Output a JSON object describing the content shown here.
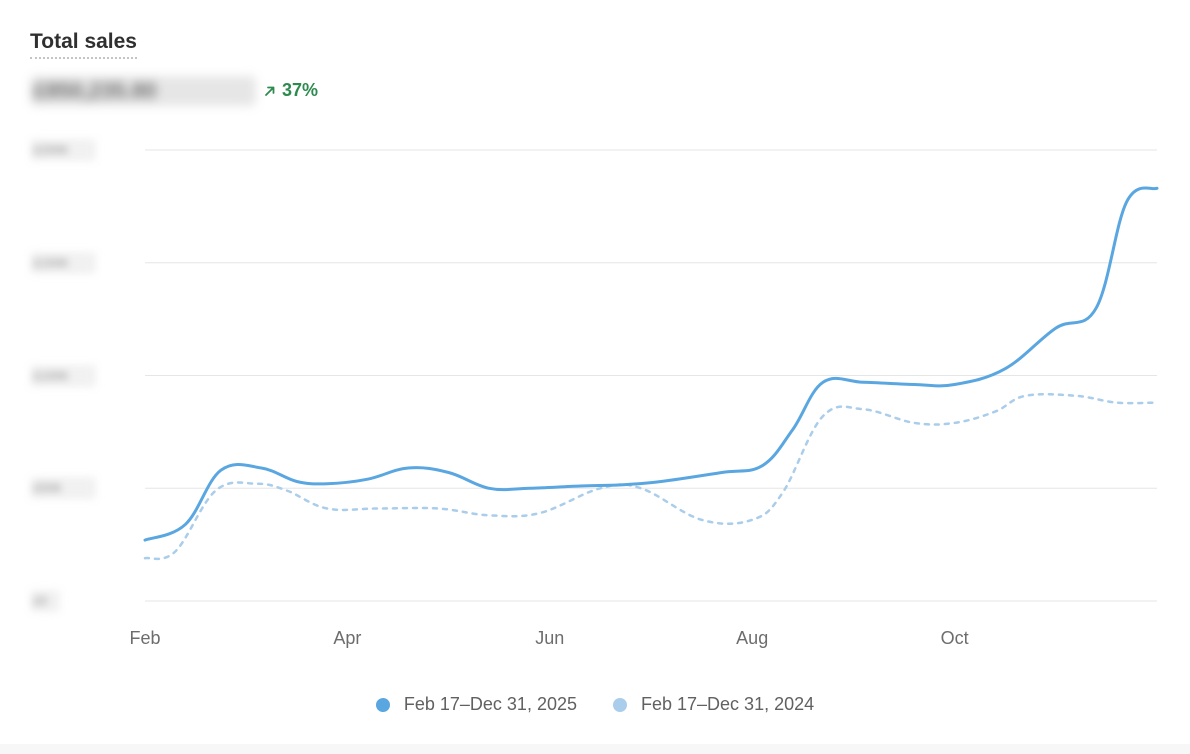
{
  "card": {
    "title": "Total sales",
    "total_value": "£850,235.80",
    "change_percent": "37%",
    "change_direction": "up",
    "change_icon": "arrow-up-right-icon"
  },
  "colors": {
    "current_series": "#5aa6e0",
    "previous_series": "#a9cdea",
    "gridline": "#e6e6e6",
    "positive_change": "#2e8b4f"
  },
  "chart_data": {
    "type": "line",
    "title": "Total sales",
    "xlabel": "",
    "ylabel": "",
    "x_ticks": [
      {
        "label": "Feb",
        "month": 0
      },
      {
        "label": "Apr",
        "month": 2
      },
      {
        "label": "Jun",
        "month": 4
      },
      {
        "label": "Aug",
        "month": 6
      },
      {
        "label": "Oct",
        "month": 8
      }
    ],
    "x_range": [
      0,
      10
    ],
    "y_ticks": [
      "£200K",
      "£150K",
      "£100K",
      "£50K",
      "£0"
    ],
    "y_tick_values": [
      200,
      150,
      100,
      50,
      0
    ],
    "ylim": [
      0,
      200
    ],
    "grid": true,
    "legend_position": "bottom",
    "series": [
      {
        "name": "Feb 17–Dec 31, 2025",
        "style": "solid",
        "points": [
          [
            0.0,
            27
          ],
          [
            0.4,
            34
          ],
          [
            0.75,
            58
          ],
          [
            1.15,
            59
          ],
          [
            1.5,
            53
          ],
          [
            1.8,
            52
          ],
          [
            2.2,
            54
          ],
          [
            2.6,
            59
          ],
          [
            3.0,
            57
          ],
          [
            3.4,
            50
          ],
          [
            3.8,
            50
          ],
          [
            4.3,
            51
          ],
          [
            4.7,
            51.5
          ],
          [
            5.1,
            53
          ],
          [
            5.7,
            57
          ],
          [
            6.1,
            60
          ],
          [
            6.4,
            76
          ],
          [
            6.7,
            97
          ],
          [
            7.1,
            97
          ],
          [
            7.6,
            96
          ],
          [
            8.0,
            96
          ],
          [
            8.5,
            103
          ],
          [
            9.0,
            121
          ],
          [
            9.4,
            130
          ],
          [
            9.7,
            177
          ],
          [
            10.0,
            183
          ]
        ]
      },
      {
        "name": "Feb 17–Dec 31, 2024",
        "style": "dashed",
        "points": [
          [
            0.0,
            19
          ],
          [
            0.3,
            22
          ],
          [
            0.7,
            49
          ],
          [
            1.1,
            52
          ],
          [
            1.4,
            49
          ],
          [
            1.8,
            41
          ],
          [
            2.3,
            41
          ],
          [
            2.9,
            41
          ],
          [
            3.4,
            38
          ],
          [
            3.9,
            39
          ],
          [
            4.5,
            50
          ],
          [
            4.9,
            50
          ],
          [
            5.5,
            36
          ],
          [
            6.0,
            36
          ],
          [
            6.3,
            48
          ],
          [
            6.7,
            82
          ],
          [
            7.1,
            85
          ],
          [
            7.6,
            79
          ],
          [
            8.0,
            79
          ],
          [
            8.4,
            84
          ],
          [
            8.7,
            91
          ],
          [
            9.2,
            91
          ],
          [
            9.6,
            88
          ],
          [
            10.0,
            88
          ]
        ]
      }
    ]
  }
}
